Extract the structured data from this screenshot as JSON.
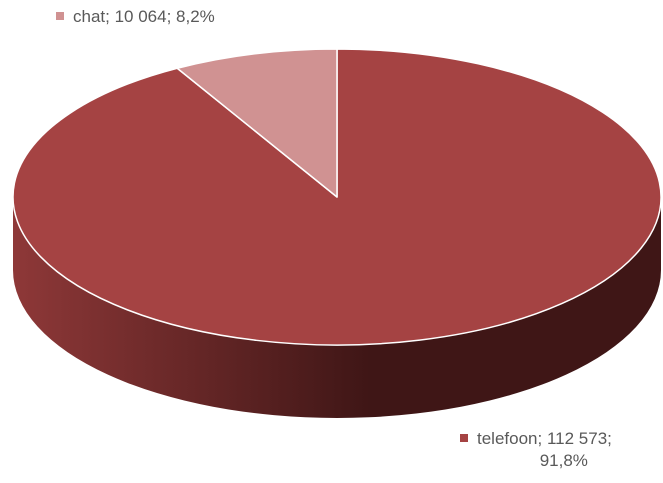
{
  "chart_data": {
    "type": "pie",
    "title": "",
    "slices": [
      {
        "category": "telefoon",
        "value": 112573,
        "value_label": "112 573",
        "percent_label": "91,8%",
        "color": "#a54343",
        "side_dark": "#3f1616",
        "side_light": "#8e3838"
      },
      {
        "category": "chat",
        "value": 10064,
        "value_label": "10 064",
        "percent_label": "8,2%",
        "color": "#d09292",
        "side_dark": "#7a4848",
        "side_light": "#b37a7a"
      }
    ],
    "style": "3d",
    "start_angle_deg": 0,
    "legend": "none"
  }
}
